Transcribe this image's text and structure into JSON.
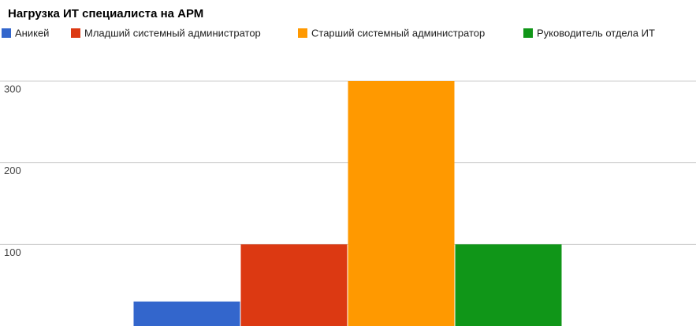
{
  "chart_data": {
    "type": "bar",
    "title": "Нагрузка ИТ специалиста на АРМ",
    "categories": [
      null
    ],
    "series": [
      {
        "name": "Аникей",
        "color": "#3366cc",
        "values": [
          30
        ]
      },
      {
        "name": "Младший системный администратор",
        "color": "#dc3912",
        "values": [
          100
        ]
      },
      {
        "name": "Старший системный администратор",
        "color": "#ff9900",
        "values": [
          300
        ]
      },
      {
        "name": "Руководитель отдела ИТ",
        "color": "#109618",
        "values": [
          100
        ]
      }
    ],
    "ylim": [
      0,
      300
    ],
    "yticks": [
      100,
      200,
      300
    ],
    "grid": true,
    "legend": "top"
  }
}
